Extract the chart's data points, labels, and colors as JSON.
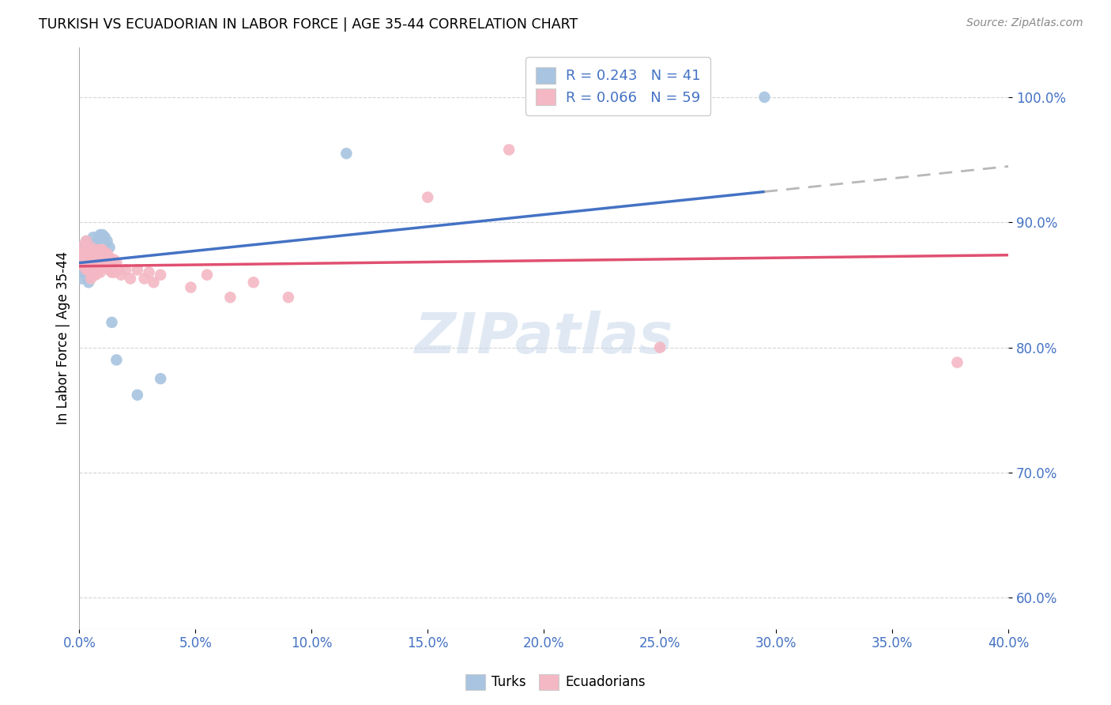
{
  "title": "TURKISH VS ECUADORIAN IN LABOR FORCE | AGE 35-44 CORRELATION CHART",
  "source": "Source: ZipAtlas.com",
  "ylabel_label": "In Labor Force | Age 35-44",
  "xlim": [
    0.0,
    0.4
  ],
  "ylim": [
    0.575,
    1.04
  ],
  "xticks": [
    0.0,
    0.05,
    0.1,
    0.15,
    0.2,
    0.25,
    0.3,
    0.35,
    0.4
  ],
  "yticks": [
    0.6,
    0.7,
    0.8,
    0.9,
    1.0
  ],
  "turks_R": 0.243,
  "turks_N": 41,
  "ecuadorians_R": 0.066,
  "ecuadorians_N": 59,
  "turks_color": "#a8c4e0",
  "ecuadorians_color": "#f4b8c4",
  "trend_turks_color": "#4472c4",
  "trend_ecuadorians_color": "#e05070",
  "trend_dash_color": "#b8b8b8",
  "turks_x": [
    0.001,
    0.001,
    0.002,
    0.002,
    0.002,
    0.003,
    0.003,
    0.003,
    0.003,
    0.004,
    0.004,
    0.004,
    0.004,
    0.004,
    0.005,
    0.005,
    0.005,
    0.005,
    0.006,
    0.006,
    0.006,
    0.006,
    0.007,
    0.007,
    0.007,
    0.008,
    0.008,
    0.009,
    0.009,
    0.01,
    0.01,
    0.011,
    0.011,
    0.012,
    0.013,
    0.014,
    0.016,
    0.025,
    0.035,
    0.115,
    0.295
  ],
  "turks_y": [
    0.87,
    0.855,
    0.88,
    0.875,
    0.86,
    0.885,
    0.878,
    0.87,
    0.862,
    0.88,
    0.875,
    0.868,
    0.86,
    0.852,
    0.882,
    0.875,
    0.868,
    0.86,
    0.888,
    0.88,
    0.872,
    0.86,
    0.882,
    0.875,
    0.865,
    0.885,
    0.875,
    0.89,
    0.878,
    0.89,
    0.878,
    0.888,
    0.878,
    0.885,
    0.88,
    0.82,
    0.79,
    0.762,
    0.775,
    0.955,
    1.0
  ],
  "ecuadorians_x": [
    0.001,
    0.001,
    0.002,
    0.002,
    0.002,
    0.003,
    0.003,
    0.003,
    0.003,
    0.004,
    0.004,
    0.004,
    0.005,
    0.005,
    0.005,
    0.005,
    0.006,
    0.006,
    0.006,
    0.007,
    0.007,
    0.007,
    0.008,
    0.008,
    0.008,
    0.009,
    0.009,
    0.009,
    0.01,
    0.01,
    0.011,
    0.011,
    0.012,
    0.012,
    0.013,
    0.013,
    0.014,
    0.014,
    0.015,
    0.015,
    0.016,
    0.017,
    0.018,
    0.02,
    0.022,
    0.025,
    0.028,
    0.03,
    0.032,
    0.035,
    0.048,
    0.055,
    0.065,
    0.075,
    0.09,
    0.15,
    0.185,
    0.25,
    0.378
  ],
  "ecuadorians_y": [
    0.875,
    0.868,
    0.882,
    0.875,
    0.865,
    0.885,
    0.878,
    0.87,
    0.862,
    0.878,
    0.87,
    0.862,
    0.88,
    0.872,
    0.862,
    0.855,
    0.875,
    0.868,
    0.858,
    0.875,
    0.865,
    0.858,
    0.878,
    0.87,
    0.86,
    0.878,
    0.87,
    0.86,
    0.878,
    0.868,
    0.875,
    0.865,
    0.875,
    0.865,
    0.872,
    0.862,
    0.87,
    0.86,
    0.87,
    0.86,
    0.868,
    0.862,
    0.858,
    0.862,
    0.855,
    0.862,
    0.855,
    0.86,
    0.852,
    0.858,
    0.848,
    0.858,
    0.84,
    0.852,
    0.84,
    0.92,
    0.958,
    0.8,
    0.788
  ],
  "watermark_text": "ZIPatlas",
  "watermark_color": "#c8d8ea",
  "watermark_alpha": 0.55
}
